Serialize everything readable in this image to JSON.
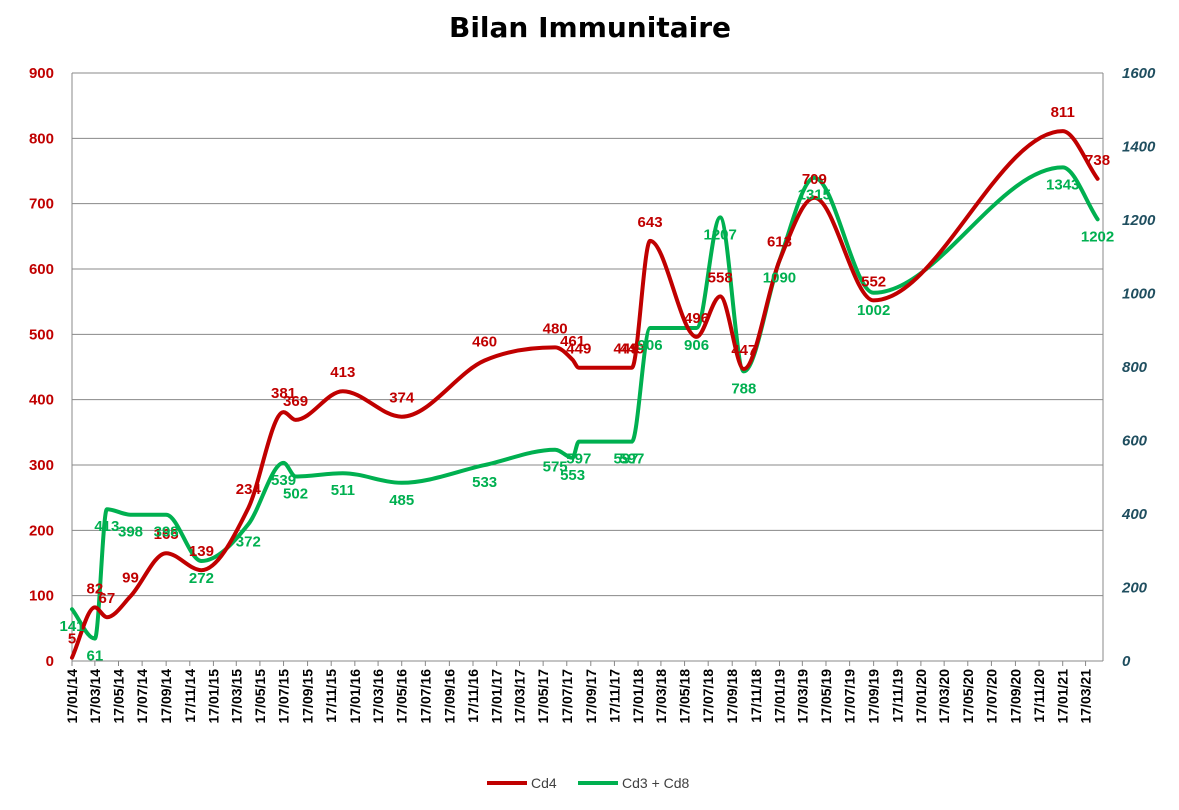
{
  "chart_data": {
    "type": "line",
    "title": "Bilan Immunitaire",
    "x_ticks": [
      "17/01/14",
      "17/03/14",
      "17/05/14",
      "17/07/14",
      "17/09/14",
      "17/11/14",
      "17/01/15",
      "17/03/15",
      "17/05/15",
      "17/07/15",
      "17/09/15",
      "17/11/15",
      "17/01/16",
      "17/03/16",
      "17/05/16",
      "17/07/16",
      "17/09/16",
      "17/11/16",
      "17/01/17",
      "17/03/17",
      "17/05/17",
      "17/07/17",
      "17/09/17",
      "17/11/17",
      "17/01/18",
      "17/03/18",
      "17/05/18",
      "17/07/18",
      "17/09/18",
      "17/11/18",
      "17/01/19",
      "17/03/19",
      "17/05/19",
      "17/07/19",
      "17/09/19",
      "17/11/19",
      "17/01/20",
      "17/03/20",
      "17/05/20",
      "17/07/20",
      "17/09/20",
      "17/11/20",
      "17/01/21",
      "17/03/21"
    ],
    "y_left": {
      "min": 0,
      "max": 900,
      "ticks": [
        "0",
        "100",
        "200",
        "300",
        "400",
        "500",
        "600",
        "700",
        "800",
        "900"
      ],
      "color": "#c00000"
    },
    "y_right": {
      "min": 0,
      "max": 1600,
      "ticks": [
        "0",
        "200",
        "400",
        "600",
        "800",
        "1000",
        "1200",
        "1400",
        "1600"
      ],
      "color": "#1f4e5f"
    },
    "grid": true,
    "legend_position": "bottom",
    "series": [
      {
        "name": "Cd4",
        "axis": "left",
        "color": "#c00000",
        "points": [
          {
            "date": "2014-01-17",
            "value": 5,
            "label": "5"
          },
          {
            "date": "2014-03-17",
            "value": 82,
            "label": "82"
          },
          {
            "date": "2014-04-17",
            "value": 67,
            "label": "67"
          },
          {
            "date": "2014-06-17",
            "value": 99,
            "label": "99"
          },
          {
            "date": "2014-09-17",
            "value": 165,
            "label": "165"
          },
          {
            "date": "2014-12-17",
            "value": 139,
            "label": "139"
          },
          {
            "date": "2015-04-17",
            "value": 234,
            "label": "234"
          },
          {
            "date": "2015-07-17",
            "value": 381,
            "label": "381"
          },
          {
            "date": "2015-08-17",
            "value": 369,
            "label": "369"
          },
          {
            "date": "2015-12-17",
            "value": 413,
            "label": "413"
          },
          {
            "date": "2016-05-17",
            "value": 374,
            "label": "374"
          },
          {
            "date": "2016-12-17",
            "value": 460,
            "label": "460"
          },
          {
            "date": "2017-06-17",
            "value": 480,
            "label": "480"
          },
          {
            "date": "2017-08-01",
            "value": 461,
            "label": "461"
          },
          {
            "date": "2017-08-17",
            "value": 449,
            "label": "449"
          },
          {
            "date": "2017-12-17",
            "value": 449,
            "label": "449"
          },
          {
            "date": "2018-01-01",
            "value": 449,
            "label": "449"
          },
          {
            "date": "2018-02-17",
            "value": 643,
            "label": "643"
          },
          {
            "date": "2018-06-17",
            "value": 496,
            "label": "496"
          },
          {
            "date": "2018-08-17",
            "value": 558,
            "label": "558"
          },
          {
            "date": "2018-10-17",
            "value": 447,
            "label": "447"
          },
          {
            "date": "2019-01-17",
            "value": 613,
            "label": "613"
          },
          {
            "date": "2019-04-17",
            "value": 709,
            "label": "709"
          },
          {
            "date": "2019-09-17",
            "value": 552,
            "label": "552"
          },
          {
            "date": "2021-01-17",
            "value": 811,
            "label": "811"
          },
          {
            "date": "2021-04-17",
            "value": 738,
            "label": "738"
          }
        ]
      },
      {
        "name": "Cd3 + Cd8",
        "axis": "right",
        "color": "#00b050",
        "points": [
          {
            "date": "2014-01-17",
            "value": 141,
            "label": "141"
          },
          {
            "date": "2014-03-17",
            "value": 61,
            "label": "61"
          },
          {
            "date": "2014-04-17",
            "value": 413,
            "label": "413"
          },
          {
            "date": "2014-06-17",
            "value": 398,
            "label": "398"
          },
          {
            "date": "2014-09-17",
            "value": 398,
            "label": "398"
          },
          {
            "date": "2014-12-17",
            "value": 272,
            "label": "272"
          },
          {
            "date": "2015-04-17",
            "value": 372,
            "label": "372"
          },
          {
            "date": "2015-07-17",
            "value": 539,
            "label": "539"
          },
          {
            "date": "2015-08-17",
            "value": 502,
            "label": "502"
          },
          {
            "date": "2015-12-17",
            "value": 511,
            "label": "511"
          },
          {
            "date": "2016-05-17",
            "value": 485,
            "label": "485"
          },
          {
            "date": "2016-12-17",
            "value": 533,
            "label": "533"
          },
          {
            "date": "2017-06-17",
            "value": 575,
            "label": "575"
          },
          {
            "date": "2017-08-01",
            "value": 553,
            "label": "553"
          },
          {
            "date": "2017-08-17",
            "value": 597,
            "label": "597"
          },
          {
            "date": "2017-12-17",
            "value": 597,
            "label": "597"
          },
          {
            "date": "2018-01-01",
            "value": 597,
            "label": "597"
          },
          {
            "date": "2018-02-17",
            "value": 906,
            "label": "906"
          },
          {
            "date": "2018-06-17",
            "value": 906,
            "label": "906"
          },
          {
            "date": "2018-08-17",
            "value": 1207,
            "label": "1207"
          },
          {
            "date": "2018-10-17",
            "value": 788,
            "label": "788"
          },
          {
            "date": "2019-01-17",
            "value": 1090,
            "label": "1090"
          },
          {
            "date": "2019-04-17",
            "value": 1315,
            "label": "1315"
          },
          {
            "date": "2019-09-17",
            "value": 1002,
            "label": "1002"
          },
          {
            "date": "2021-01-17",
            "value": 1343,
            "label": "1343"
          },
          {
            "date": "2021-04-17",
            "value": 1202,
            "label": "1202"
          }
        ]
      }
    ]
  }
}
